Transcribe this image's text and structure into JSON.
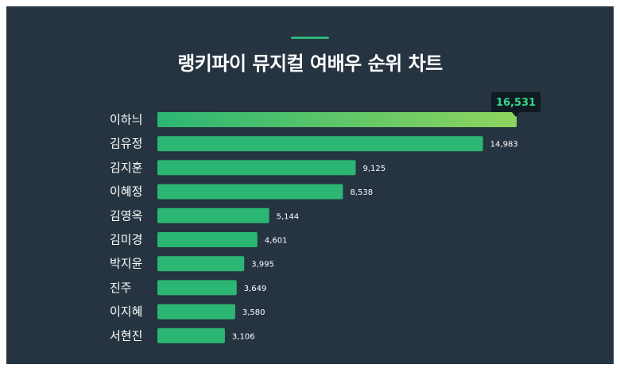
{
  "title": "랭키파이 뮤지컬 여배우 순위 차트",
  "colors": {
    "background": "#263340",
    "accent": "#2db57b",
    "bar": "#2bb673",
    "top_bar_start": "#2bb673",
    "top_bar_end": "#8fd45e",
    "top_value_text": "#2fd88a",
    "top_value_box": "#0f1a22"
  },
  "chart_data": {
    "type": "bar",
    "orientation": "horizontal",
    "title": "랭키파이 뮤지컬 여배우 순위 차트",
    "categories": [
      "이하늬",
      "김유정",
      "김지훈",
      "이혜정",
      "김영옥",
      "김미경",
      "박지윤",
      "진주",
      "이지혜",
      "서현진"
    ],
    "values": [
      16531,
      14983,
      9125,
      8538,
      5144,
      4601,
      3995,
      3649,
      3580,
      3106
    ],
    "value_labels": [
      "16,531",
      "14,983",
      "9,125",
      "8,538",
      "5,144",
      "4,601",
      "3,995",
      "3,649",
      "3,580",
      "3,106"
    ],
    "xlim": [
      0,
      16531
    ],
    "grid": false,
    "legend": "none"
  }
}
